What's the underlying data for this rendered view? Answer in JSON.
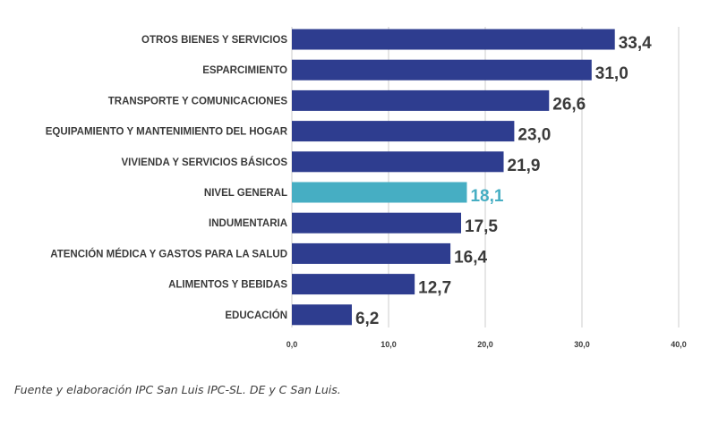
{
  "chart_data": {
    "type": "bar",
    "orientation": "horizontal",
    "categories": [
      "OTROS BIENES Y SERVICIOS",
      "ESPARCIMIENTO",
      "TRANSPORTE Y COMUNICACIONES",
      "EQUIPAMIENTO Y MANTENIMIENTO DEL HOGAR",
      "VIVIENDA Y SERVICIOS BÁSICOS",
      "NIVEL GENERAL",
      "INDUMENTARIA",
      "ATENCIÓN MÉDICA Y GASTOS PARA LA SALUD",
      "ALIMENTOS Y BEBIDAS",
      "EDUCACIÓN"
    ],
    "values": [
      33.4,
      31.0,
      26.6,
      23.0,
      21.9,
      18.1,
      17.5,
      16.4,
      12.7,
      6.2
    ],
    "value_labels": [
      "33,4",
      "31,0",
      "26,6",
      "23,0",
      "21,9",
      "18,1",
      "17,5",
      "16,4",
      "12,7",
      "6,2"
    ],
    "highlight_category": "NIVEL GENERAL",
    "xlim": [
      0,
      40
    ],
    "x_ticks": [
      0,
      10,
      20,
      30,
      40
    ],
    "x_tick_labels": [
      "0,0",
      "10,0",
      "20,0",
      "30,0",
      "40,0"
    ],
    "grid": true,
    "colors": {
      "bar": "#2e3d8f",
      "highlight": "#46aec3",
      "highlight_label": "#46aec3",
      "label": "#3a3a3a"
    },
    "title": "",
    "xlabel": "",
    "ylabel": ""
  },
  "source_note": "Fuente y elaboración IPC San Luis IPC-SL. DE y C San Luis."
}
